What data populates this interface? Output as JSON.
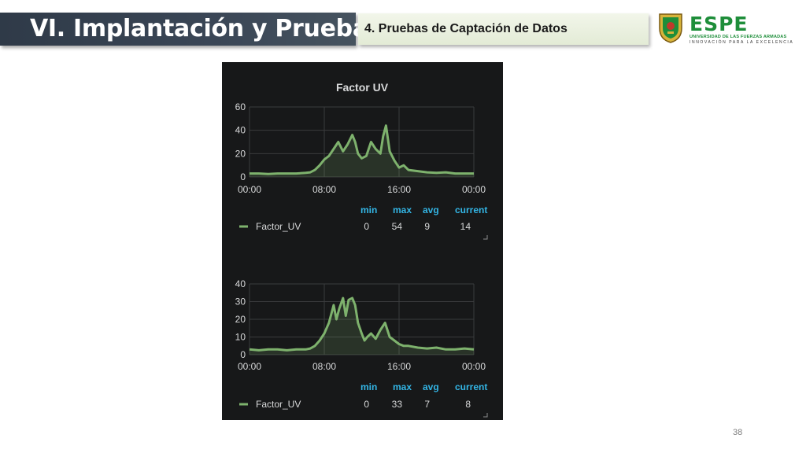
{
  "header": {
    "title": "VI. Implantación y Pruebas",
    "subtitle": "4. Pruebas de Captación de Datos"
  },
  "logo": {
    "wordmark": "ESPE",
    "line1": "UNIVERSIDAD DE LAS FUERZAS ARMADAS",
    "line2": "INNOVACIÓN PARA LA EXCELENCIA",
    "color": "#1e8e3a"
  },
  "page_number": "38",
  "legend_headers": [
    "min",
    "max",
    "avg",
    "current"
  ],
  "colors": {
    "series": "#7eb26d",
    "panel": "#171819",
    "grid": "#3a3b3d",
    "legend_header": "#33b5e5"
  },
  "chart_data": [
    {
      "type": "area",
      "title": "Factor UV",
      "x_ticks": [
        "00:00",
        "08:00",
        "16:00",
        "00:00"
      ],
      "xlim": [
        0,
        24
      ],
      "ylim": [
        0,
        60
      ],
      "y_ticks": [
        0,
        20,
        40,
        60
      ],
      "grid": true,
      "legend": "bottom",
      "series": [
        {
          "name": "Factor_UV",
          "stats": {
            "min": "0",
            "max": "54",
            "avg": "9",
            "current": "14"
          },
          "x": [
            0,
            1,
            2,
            3,
            4,
            5,
            6,
            6.5,
            7,
            7.5,
            8,
            8.5,
            9,
            9.5,
            10,
            10.5,
            11,
            11.3,
            11.6,
            12,
            12.5,
            13,
            13.5,
            14,
            14.3,
            14.6,
            15,
            15.5,
            16,
            16.5,
            17,
            18,
            19,
            20,
            21,
            22,
            23,
            24
          ],
          "y": [
            3,
            3,
            2.5,
            3,
            3,
            3,
            3.5,
            4,
            6,
            10,
            15,
            18,
            24,
            30,
            22,
            28,
            36,
            30,
            20,
            16,
            18,
            30,
            24,
            20,
            35,
            44,
            22,
            14,
            8,
            10,
            6,
            5,
            4,
            3.5,
            4,
            3,
            3,
            3
          ]
        }
      ]
    },
    {
      "type": "area",
      "title": "",
      "x_ticks": [
        "00:00",
        "08:00",
        "16:00",
        "00:00"
      ],
      "xlim": [
        0,
        24
      ],
      "ylim": [
        0,
        40
      ],
      "y_ticks": [
        0,
        10,
        20,
        30,
        40
      ],
      "grid": true,
      "legend": "bottom",
      "series": [
        {
          "name": "Factor_UV",
          "stats": {
            "min": "0",
            "max": "33",
            "avg": "7",
            "current": "8"
          },
          "x": [
            0,
            1,
            2,
            3,
            4,
            5,
            6,
            6.5,
            7,
            7.5,
            8,
            8.5,
            9,
            9.3,
            9.6,
            10,
            10.3,
            10.6,
            11,
            11.3,
            11.6,
            12,
            12.3,
            12.6,
            13,
            13.5,
            14,
            14.5,
            15,
            15.5,
            16,
            16.5,
            17,
            18,
            19,
            20,
            21,
            22,
            23,
            24
          ],
          "y": [
            3,
            2.5,
            3,
            3,
            2.5,
            3,
            3,
            3.5,
            5,
            8,
            12,
            18,
            28,
            20,
            26,
            32,
            22,
            31,
            32,
            28,
            18,
            12,
            8,
            10,
            12,
            9,
            14,
            18,
            10,
            8,
            6,
            5,
            5,
            4,
            3.5,
            4,
            3,
            3,
            3.5,
            3
          ]
        }
      ]
    }
  ]
}
